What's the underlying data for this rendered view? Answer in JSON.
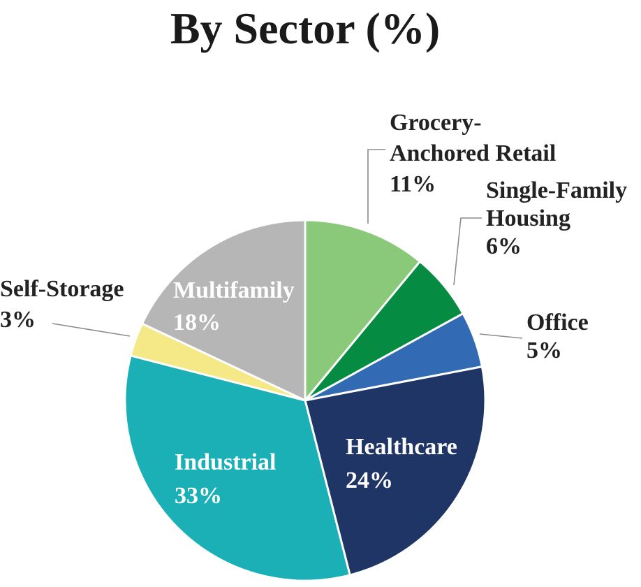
{
  "chart_data": {
    "type": "pie",
    "title": "By Sector (%)",
    "slices": [
      {
        "name": "Grocery-Anchored Retail",
        "label_lines": [
          "Grocery-",
          "Anchored Retail"
        ],
        "value": 11,
        "value_label": "11%",
        "color": "#8AC97A",
        "label_placement": "outside"
      },
      {
        "name": "Single-Family Housing",
        "label_lines": [
          "Single-Family",
          "Housing"
        ],
        "value": 6,
        "value_label": "6%",
        "color": "#058C42",
        "label_placement": "outside"
      },
      {
        "name": "Office",
        "label_lines": [
          "Office"
        ],
        "value": 5,
        "value_label": "5%",
        "color": "#326BB4",
        "label_placement": "outside"
      },
      {
        "name": "Healthcare",
        "label_lines": [
          "Healthcare"
        ],
        "value": 24,
        "value_label": "24%",
        "color": "#1F3566",
        "label_placement": "inside"
      },
      {
        "name": "Industrial",
        "label_lines": [
          "Industrial"
        ],
        "value": 33,
        "value_label": "33%",
        "color": "#1AB0B5",
        "label_placement": "inside"
      },
      {
        "name": "Self-Storage",
        "label_lines": [
          "Self-Storage"
        ],
        "value": 3,
        "value_label": "3%",
        "color": "#F5E887",
        "label_placement": "outside"
      },
      {
        "name": "Multifamily",
        "label_lines": [
          "Multifamily"
        ],
        "value": 18,
        "value_label": "18%",
        "color": "#B5B6B5",
        "label_placement": "inside"
      }
    ],
    "start_angle": "12 o'clock",
    "direction": "clockwise",
    "legend": "none"
  }
}
